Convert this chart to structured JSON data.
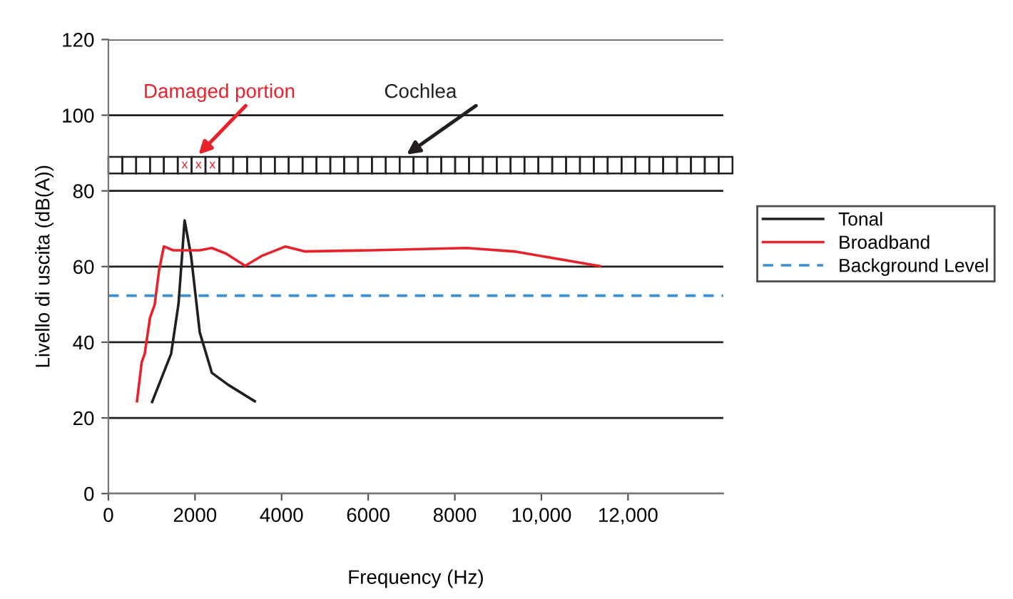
{
  "chart_data": {
    "type": "line",
    "xlabel": "Frequency (Hz)",
    "ylabel": "Livello di uscita (dB(A))",
    "xlim": [
      0,
      14200
    ],
    "ylim": [
      0,
      120
    ],
    "xticks": [
      0,
      2000,
      4000,
      6000,
      8000,
      {
        "value": 10000,
        "label": "10,000"
      },
      {
        "value": 12000,
        "label": "12,000"
      }
    ],
    "yticks": [
      0,
      20,
      40,
      60,
      80,
      100,
      120
    ],
    "grid": "y",
    "legend": "right",
    "marker": "none",
    "line_style": "solid",
    "series": [
      {
        "name": "Tonal",
        "color": "#231f20",
        "x": [
          1010,
          1450,
          1620,
          1760,
          1910,
          2110,
          2390,
          2760,
          3380
        ],
        "values": [
          24.2,
          37,
          50.2,
          72.2,
          62.8,
          42.6,
          31.9,
          28.8,
          24.4
        ]
      },
      {
        "name": "Broadband",
        "color": "#e8222a",
        "x": [
          660,
          770,
          840,
          960,
          1070,
          1170,
          1280,
          1500,
          2110,
          2390,
          2720,
          3160,
          3540,
          4090,
          4530,
          6070,
          8270,
          9370,
          11350
        ],
        "values": [
          24.4,
          34.8,
          37,
          46.4,
          50,
          59,
          65.3,
          64.3,
          64.3,
          64.9,
          63.4,
          60.2,
          62.8,
          65.3,
          64,
          64.3,
          64.9,
          64,
          60.1
        ]
      }
    ],
    "ref_lines": [
      {
        "axis": "y",
        "value": 52.3,
        "label": "Background Level",
        "color": "#3a8fd0",
        "line_style": "dashed"
      }
    ],
    "annotations": [
      "Damaged portion",
      "Cochlea",
      "x",
      "x",
      "x"
    ]
  }
}
